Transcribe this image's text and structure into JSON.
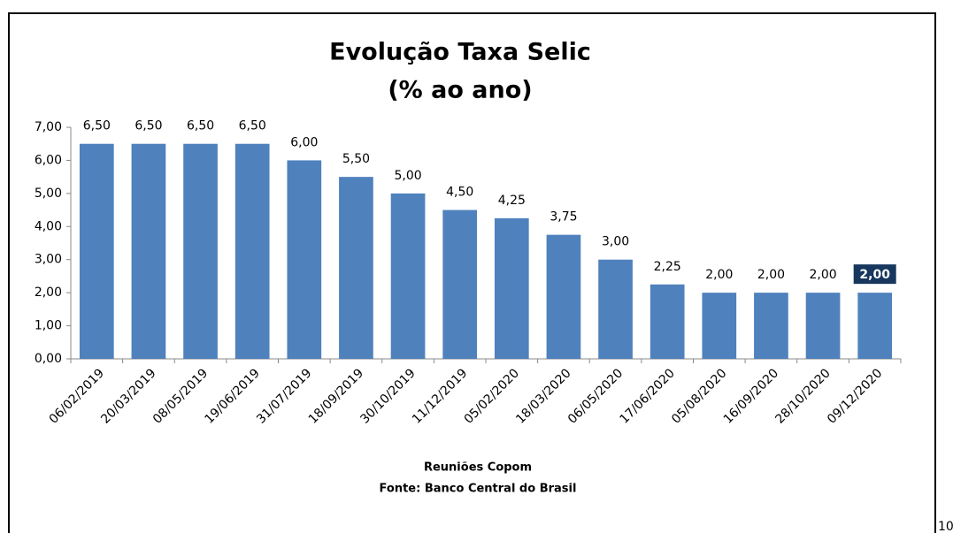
{
  "chart_data": {
    "type": "bar",
    "title": "Evolução Taxa Selic",
    "subtitle": "(% ao ano)",
    "xlabel": "Reuniões Copom",
    "source": "Fonte: Banco Central do Brasil",
    "categories": [
      "06/02/2019",
      "20/03/2019",
      "08/05/2019",
      "19/06/2019",
      "31/07/2019",
      "18/09/2019",
      "30/10/2019",
      "11/12/2019",
      "05/02/2020",
      "18/03/2020",
      "06/05/2020",
      "17/06/2020",
      "05/08/2020",
      "16/09/2020",
      "28/10/2020",
      "09/12/2020"
    ],
    "values": [
      6.5,
      6.5,
      6.5,
      6.5,
      6.0,
      5.5,
      5.0,
      4.5,
      4.25,
      3.75,
      3.0,
      2.25,
      2.0,
      2.0,
      2.0,
      2.0
    ],
    "value_labels": [
      "6,50",
      "6,50",
      "6,50",
      "6,50",
      "6,00",
      "5,50",
      "5,00",
      "4,50",
      "4,25",
      "3,75",
      "3,00",
      "2,25",
      "2,00",
      "2,00",
      "2,00",
      "2,00"
    ],
    "value_label_background": [
      null,
      null,
      null,
      null,
      null,
      null,
      null,
      null,
      null,
      null,
      null,
      null,
      null,
      null,
      null,
      "#17375e"
    ],
    "color": "#4f81bd",
    "ylim": [
      0,
      7
    ],
    "yticks": [
      {
        "value": 0,
        "label": "0,00"
      },
      {
        "value": 1,
        "label": "1,00"
      },
      {
        "value": 2,
        "label": "2,00"
      },
      {
        "value": 3,
        "label": "3,00"
      },
      {
        "value": 4,
        "label": "4,00"
      },
      {
        "value": 5,
        "label": "5,00"
      },
      {
        "value": 6,
        "label": "6,00"
      },
      {
        "value": 7,
        "label": "7,00"
      }
    ],
    "grid": false
  },
  "page_number": "10"
}
